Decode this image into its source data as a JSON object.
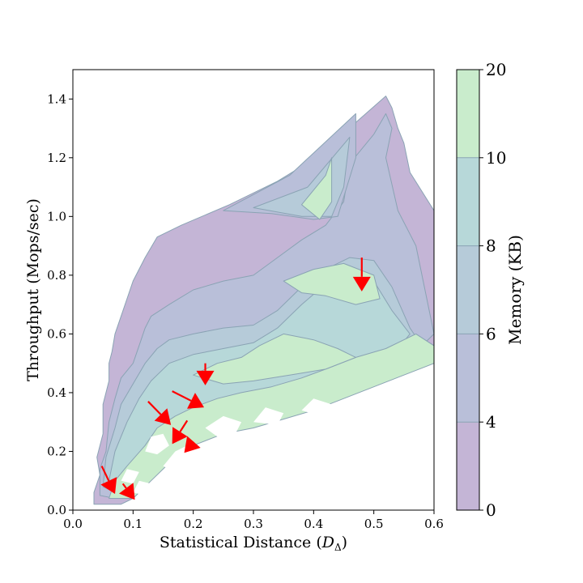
{
  "chart_data": {
    "type": "heatmap",
    "subtype": "filled-contour",
    "xlabel": "Statistical Distance (",
    "xlabel_symbol": "D",
    "xlabel_subscript": "Δ",
    "xlabel_close": ")",
    "ylabel": "Throughput (Mops/sec)",
    "xlim": [
      0.0,
      0.6
    ],
    "ylim": [
      0.0,
      1.5
    ],
    "xticks": [
      "0.0",
      "0.1",
      "0.2",
      "0.3",
      "0.4",
      "0.5",
      "0.6"
    ],
    "yticks": [
      "0.0",
      "0.2",
      "0.4",
      "0.6",
      "0.8",
      "1.0",
      "1.2",
      "1.4"
    ],
    "colorbar": {
      "label": "Memory (KB)",
      "levels": [
        0,
        4,
        6,
        8,
        10,
        20
      ],
      "tick_labels": [
        "0",
        "4",
        "6",
        "8",
        "10",
        "20"
      ],
      "colors": [
        "#c4b5d6",
        "#b9bfd9",
        "#b6cbd9",
        "#b7d8d9",
        "#c9eccc"
      ]
    },
    "regions": {
      "band0_envelope": [
        [
          0.035,
          0.02
        ],
        [
          0.035,
          0.06
        ],
        [
          0.045,
          0.12
        ],
        [
          0.04,
          0.18
        ],
        [
          0.05,
          0.26
        ],
        [
          0.05,
          0.36
        ],
        [
          0.055,
          0.4
        ],
        [
          0.06,
          0.44
        ],
        [
          0.06,
          0.5
        ],
        [
          0.065,
          0.54
        ],
        [
          0.07,
          0.6
        ],
        [
          0.08,
          0.66
        ],
        [
          0.09,
          0.72
        ],
        [
          0.1,
          0.78
        ],
        [
          0.12,
          0.86
        ],
        [
          0.14,
          0.93
        ],
        [
          0.18,
          0.97
        ],
        [
          0.26,
          1.04
        ],
        [
          0.34,
          1.12
        ],
        [
          0.42,
          1.22
        ],
        [
          0.47,
          1.32
        ],
        [
          0.52,
          1.41
        ],
        [
          0.53,
          1.37
        ],
        [
          0.54,
          1.3
        ],
        [
          0.55,
          1.25
        ],
        [
          0.56,
          1.15
        ],
        [
          0.6,
          1.02
        ],
        [
          0.6,
          0.56
        ],
        [
          0.57,
          0.52
        ],
        [
          0.53,
          0.47
        ],
        [
          0.5,
          0.44
        ],
        [
          0.45,
          0.4
        ],
        [
          0.4,
          0.36
        ],
        [
          0.35,
          0.34
        ],
        [
          0.3,
          0.32
        ],
        [
          0.25,
          0.3
        ],
        [
          0.2,
          0.26
        ],
        [
          0.17,
          0.2
        ],
        [
          0.14,
          0.14
        ],
        [
          0.12,
          0.08
        ],
        [
          0.1,
          0.04
        ],
        [
          0.08,
          0.02
        ]
      ],
      "band1_envelope": [
        [
          0.045,
          0.05
        ],
        [
          0.045,
          0.14
        ],
        [
          0.055,
          0.2
        ],
        [
          0.06,
          0.3
        ],
        [
          0.07,
          0.38
        ],
        [
          0.08,
          0.45
        ],
        [
          0.1,
          0.5
        ],
        [
          0.11,
          0.56
        ],
        [
          0.12,
          0.62
        ],
        [
          0.13,
          0.66
        ],
        [
          0.16,
          0.7
        ],
        [
          0.2,
          0.75
        ],
        [
          0.25,
          0.78
        ],
        [
          0.3,
          0.8
        ],
        [
          0.34,
          0.86
        ],
        [
          0.38,
          0.92
        ],
        [
          0.42,
          0.97
        ],
        [
          0.45,
          1.05
        ],
        [
          0.46,
          1.18
        ],
        [
          0.5,
          1.28
        ],
        [
          0.52,
          1.35
        ],
        [
          0.53,
          1.3
        ],
        [
          0.52,
          1.2
        ],
        [
          0.54,
          1.02
        ],
        [
          0.57,
          0.9
        ],
        [
          0.6,
          0.6
        ],
        [
          0.56,
          0.52
        ],
        [
          0.5,
          0.45
        ],
        [
          0.45,
          0.41
        ],
        [
          0.4,
          0.37
        ],
        [
          0.35,
          0.35
        ],
        [
          0.3,
          0.33
        ],
        [
          0.25,
          0.31
        ],
        [
          0.2,
          0.27
        ],
        [
          0.16,
          0.2
        ],
        [
          0.13,
          0.13
        ],
        [
          0.1,
          0.06
        ],
        [
          0.07,
          0.04
        ]
      ],
      "band2_envelope": [
        [
          0.05,
          0.08
        ],
        [
          0.055,
          0.18
        ],
        [
          0.07,
          0.28
        ],
        [
          0.08,
          0.36
        ],
        [
          0.1,
          0.43
        ],
        [
          0.12,
          0.5
        ],
        [
          0.14,
          0.55
        ],
        [
          0.16,
          0.58
        ],
        [
          0.2,
          0.6
        ],
        [
          0.25,
          0.62
        ],
        [
          0.3,
          0.63
        ],
        [
          0.34,
          0.68
        ],
        [
          0.38,
          0.76
        ],
        [
          0.42,
          0.82
        ],
        [
          0.46,
          0.86
        ],
        [
          0.5,
          0.85
        ],
        [
          0.53,
          0.76
        ],
        [
          0.56,
          0.62
        ],
        [
          0.58,
          0.56
        ],
        [
          0.53,
          0.48
        ],
        [
          0.47,
          0.43
        ],
        [
          0.4,
          0.38
        ],
        [
          0.34,
          0.35
        ],
        [
          0.28,
          0.32
        ],
        [
          0.22,
          0.28
        ],
        [
          0.17,
          0.2
        ],
        [
          0.13,
          0.12
        ],
        [
          0.1,
          0.07
        ],
        [
          0.07,
          0.06
        ]
      ],
      "band3_envelope": [
        [
          0.06,
          0.1
        ],
        [
          0.07,
          0.2
        ],
        [
          0.09,
          0.3
        ],
        [
          0.11,
          0.38
        ],
        [
          0.13,
          0.44
        ],
        [
          0.16,
          0.5
        ],
        [
          0.2,
          0.53
        ],
        [
          0.25,
          0.55
        ],
        [
          0.3,
          0.57
        ],
        [
          0.34,
          0.62
        ],
        [
          0.38,
          0.7
        ],
        [
          0.42,
          0.77
        ],
        [
          0.46,
          0.8
        ],
        [
          0.5,
          0.78
        ],
        [
          0.53,
          0.68
        ],
        [
          0.56,
          0.6
        ],
        [
          0.52,
          0.5
        ],
        [
          0.46,
          0.45
        ],
        [
          0.4,
          0.4
        ],
        [
          0.34,
          0.37
        ],
        [
          0.28,
          0.34
        ],
        [
          0.22,
          0.3
        ],
        [
          0.17,
          0.22
        ],
        [
          0.13,
          0.14
        ],
        [
          0.1,
          0.09
        ]
      ],
      "top_wedge_band1": [
        [
          0.25,
          1.02
        ],
        [
          0.36,
          1.14
        ],
        [
          0.47,
          1.35
        ],
        [
          0.47,
          1.2
        ],
        [
          0.44,
          1.0
        ],
        [
          0.4,
          0.99
        ],
        [
          0.33,
          1.01
        ]
      ],
      "top_wedge_band2": [
        [
          0.3,
          1.03
        ],
        [
          0.39,
          1.1
        ],
        [
          0.46,
          1.27
        ],
        [
          0.45,
          1.1
        ],
        [
          0.43,
          1.0
        ],
        [
          0.38,
          1.0
        ]
      ],
      "top_wedge_band4": [
        [
          0.38,
          1.04
        ],
        [
          0.42,
          1.14
        ],
        [
          0.43,
          1.2
        ],
        [
          0.43,
          1.05
        ],
        [
          0.41,
          0.99
        ]
      ],
      "band4_low": [
        [
          0.06,
          0.04
        ],
        [
          0.07,
          0.1
        ],
        [
          0.09,
          0.15
        ],
        [
          0.12,
          0.22
        ],
        [
          0.14,
          0.28
        ],
        [
          0.17,
          0.32
        ],
        [
          0.2,
          0.35
        ],
        [
          0.24,
          0.38
        ],
        [
          0.28,
          0.4
        ],
        [
          0.33,
          0.42
        ],
        [
          0.38,
          0.45
        ],
        [
          0.42,
          0.48
        ],
        [
          0.47,
          0.52
        ],
        [
          0.52,
          0.55
        ],
        [
          0.57,
          0.6
        ],
        [
          0.6,
          0.56
        ],
        [
          0.6,
          0.5
        ],
        [
          0.55,
          0.46
        ],
        [
          0.5,
          0.42
        ],
        [
          0.45,
          0.38
        ],
        [
          0.4,
          0.34
        ],
        [
          0.35,
          0.31
        ],
        [
          0.3,
          0.28
        ],
        [
          0.25,
          0.26
        ],
        [
          0.2,
          0.22
        ],
        [
          0.16,
          0.16
        ],
        [
          0.13,
          0.1
        ],
        [
          0.1,
          0.04
        ]
      ],
      "band4_upper": [
        [
          0.35,
          0.78
        ],
        [
          0.4,
          0.82
        ],
        [
          0.45,
          0.84
        ],
        [
          0.5,
          0.8
        ],
        [
          0.51,
          0.72
        ],
        [
          0.47,
          0.7
        ],
        [
          0.42,
          0.73
        ],
        [
          0.38,
          0.74
        ]
      ],
      "band4_mid": [
        [
          0.2,
          0.46
        ],
        [
          0.24,
          0.5
        ],
        [
          0.28,
          0.52
        ],
        [
          0.31,
          0.56
        ],
        [
          0.35,
          0.6
        ],
        [
          0.4,
          0.58
        ],
        [
          0.44,
          0.55
        ],
        [
          0.47,
          0.52
        ],
        [
          0.42,
          0.48
        ],
        [
          0.36,
          0.46
        ],
        [
          0.3,
          0.44
        ],
        [
          0.25,
          0.43
        ]
      ],
      "white_holes": [
        [
          [
            0.15,
            0.15
          ],
          [
            0.17,
            0.2
          ],
          [
            0.19,
            0.22
          ],
          [
            0.22,
            0.2
          ],
          [
            0.21,
            0.14
          ],
          [
            0.18,
            0.12
          ]
        ],
        [
          [
            0.12,
            0.2
          ],
          [
            0.13,
            0.25
          ],
          [
            0.15,
            0.26
          ],
          [
            0.16,
            0.22
          ],
          [
            0.14,
            0.19
          ]
        ],
        [
          [
            0.22,
            0.28
          ],
          [
            0.25,
            0.32
          ],
          [
            0.28,
            0.3
          ],
          [
            0.27,
            0.26
          ],
          [
            0.24,
            0.25
          ]
        ],
        [
          [
            0.3,
            0.3
          ],
          [
            0.32,
            0.35
          ],
          [
            0.35,
            0.33
          ],
          [
            0.34,
            0.29
          ]
        ],
        [
          [
            0.38,
            0.34
          ],
          [
            0.4,
            0.38
          ],
          [
            0.43,
            0.36
          ],
          [
            0.41,
            0.32
          ]
        ],
        [
          [
            0.1,
            0.06
          ],
          [
            0.11,
            0.1
          ],
          [
            0.13,
            0.09
          ],
          [
            0.12,
            0.05
          ]
        ],
        [
          [
            0.08,
            0.1
          ],
          [
            0.09,
            0.14
          ],
          [
            0.11,
            0.13
          ],
          [
            0.1,
            0.09
          ]
        ],
        [
          [
            0.26,
            0.2
          ],
          [
            0.28,
            0.24
          ],
          [
            0.3,
            0.22
          ],
          [
            0.29,
            0.18
          ]
        ],
        [
          [
            0.33,
            0.24
          ],
          [
            0.35,
            0.27
          ],
          [
            0.37,
            0.25
          ],
          [
            0.35,
            0.22
          ]
        ],
        [
          [
            0.2,
            0.1
          ],
          [
            0.22,
            0.14
          ],
          [
            0.24,
            0.12
          ],
          [
            0.23,
            0.09
          ]
        ],
        [
          [
            0.42,
            0.29
          ],
          [
            0.45,
            0.32
          ],
          [
            0.47,
            0.3
          ],
          [
            0.45,
            0.28
          ]
        ]
      ]
    },
    "arrows": [
      {
        "from": [
          0.048,
          0.15
        ],
        "to": [
          0.07,
          0.055
        ]
      },
      {
        "from": [
          0.083,
          0.09
        ],
        "to": [
          0.103,
          0.035
        ]
      },
      {
        "from": [
          0.125,
          0.37
        ],
        "to": [
          0.163,
          0.29
        ]
      },
      {
        "from": [
          0.19,
          0.305
        ],
        "to": [
          0.165,
          0.225
        ]
      },
      {
        "from": [
          0.2,
          0.23
        ],
        "to": [
          0.185,
          0.195
        ]
      },
      {
        "from": [
          0.165,
          0.405
        ],
        "to": [
          0.218,
          0.35
        ]
      },
      {
        "from": [
          0.22,
          0.5
        ],
        "to": [
          0.22,
          0.425
        ]
      },
      {
        "from": [
          0.48,
          0.86
        ],
        "to": [
          0.48,
          0.745
        ]
      }
    ]
  }
}
